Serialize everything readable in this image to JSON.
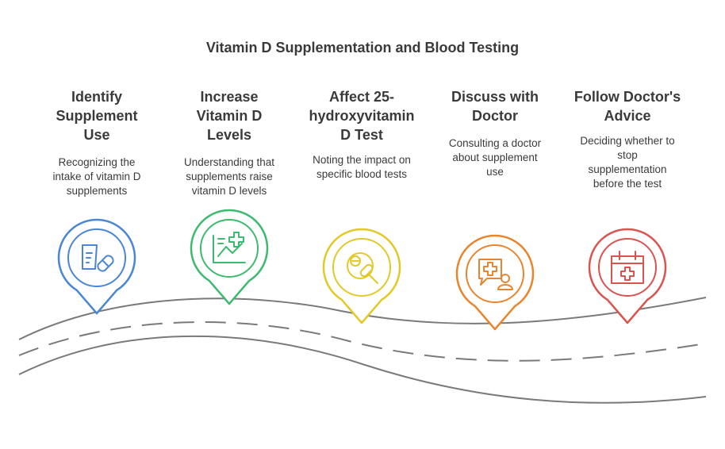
{
  "title": "Vitamin D Supplementation and Blood Testing",
  "steps": [
    {
      "title": "Identify Supplement Use",
      "title_lines": [
        "Identify",
        "Supplement",
        "Use"
      ],
      "desc_lines": [
        "Recognizing the",
        "intake of vitamin D",
        "supplements"
      ],
      "color": "#4a86d4",
      "icon": "pill-prescription-icon"
    },
    {
      "title": "Increase Vitamin D Levels",
      "title_lines": [
        "Increase",
        "Vitamin D",
        "Levels"
      ],
      "desc_lines": [
        "Understanding that",
        "supplements raise",
        "vitamin D levels"
      ],
      "color": "#3dba6f",
      "icon": "health-chart-icon"
    },
    {
      "title": "Affect 25-hydroxyvitamin D Test",
      "title_lines": [
        "Affect 25-",
        "hydroxyvitamin",
        "D Test"
      ],
      "desc_lines": [
        "Noting the impact on",
        "specific blood tests"
      ],
      "color": "#e3c927",
      "icon": "magnifier-pill-icon"
    },
    {
      "title": "Discuss with Doctor",
      "title_lines": [
        "Discuss with",
        "Doctor"
      ],
      "desc_lines": [
        "Consulting a doctor",
        "about supplement",
        "use"
      ],
      "color": "#e8852e",
      "icon": "doctor-consult-icon"
    },
    {
      "title": "Follow Doctor's Advice",
      "title_lines": [
        "Follow Doctor's",
        "Advice"
      ],
      "desc_lines": [
        "Deciding whether to",
        "stop",
        "supplementation",
        "before the test"
      ],
      "color": "#d9534f",
      "icon": "medical-calendar-icon"
    }
  ]
}
